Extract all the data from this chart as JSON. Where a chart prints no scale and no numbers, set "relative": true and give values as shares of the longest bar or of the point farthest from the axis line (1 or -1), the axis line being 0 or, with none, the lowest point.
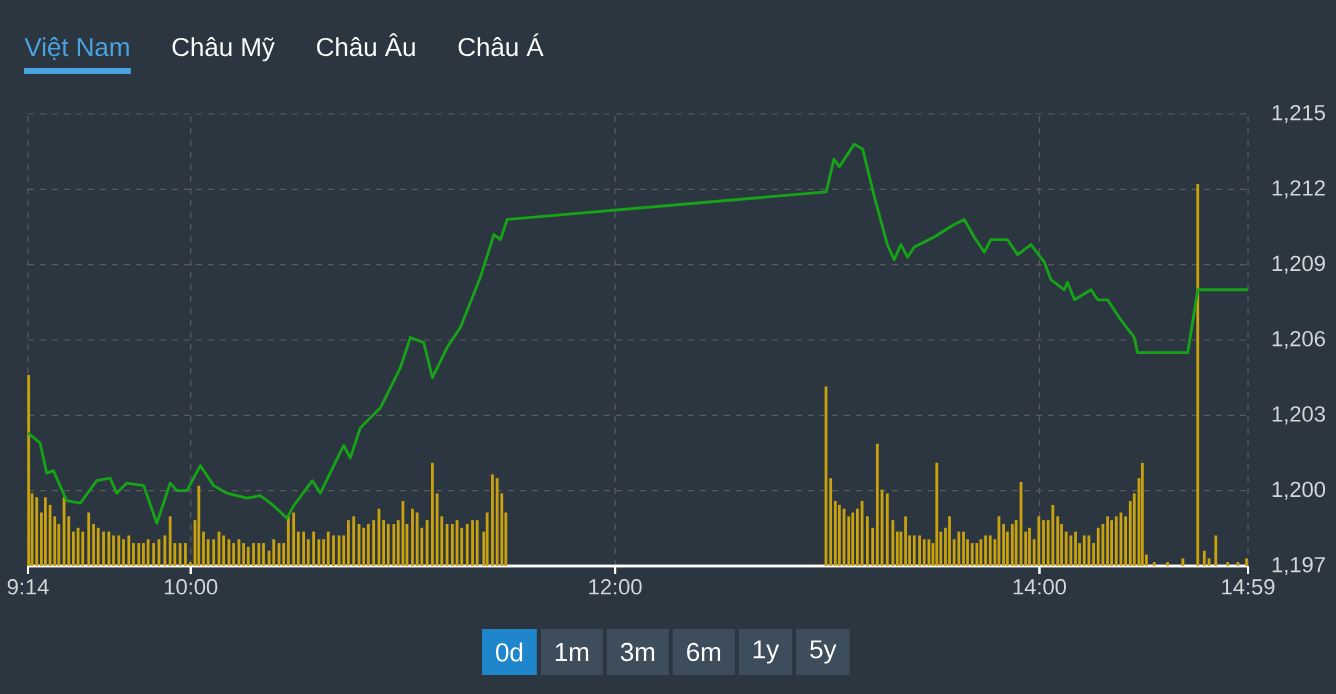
{
  "chart_data": [
    {
      "type": "line",
      "xlim": [
        9.233,
        14.983
      ],
      "ylim": [
        1197,
        1215
      ],
      "xticks": [
        {
          "value": 9.233,
          "label": null
        },
        {
          "value": 10,
          "label": null
        },
        {
          "value": 12,
          "label": null
        },
        {
          "value": 14,
          "label": null
        },
        {
          "value": 14.983,
          "label": null
        }
      ],
      "yticks": [
        {
          "value": 1197,
          "label": "1,197"
        },
        {
          "value": 1200,
          "label": "1,200"
        },
        {
          "value": 1203,
          "label": "1,203"
        },
        {
          "value": 1206,
          "label": "1,206"
        },
        {
          "value": 1209,
          "label": "1,209"
        },
        {
          "value": 1212,
          "label": "1,212"
        },
        {
          "value": 1215,
          "label": "1,215"
        }
      ],
      "grid": true,
      "tick_labels": "y",
      "annotations": [
        "Việt Nam",
        "Châu Mỹ",
        "Châu Âu",
        "Châu Á",
        "0d",
        "1m",
        "3m",
        "6m",
        "1y",
        "5y"
      ],
      "color": "#17a317",
      "x": [
        9.233,
        9.29,
        9.321,
        9.353,
        9.415,
        9.479,
        9.557,
        9.62,
        9.651,
        9.698,
        9.778,
        9.84,
        9.903,
        9.935,
        9.982,
        10.045,
        10.108,
        10.17,
        10.265,
        10.328,
        10.391,
        10.453,
        10.485,
        10.573,
        10.611,
        10.674,
        10.721,
        10.752,
        10.799,
        10.894,
        10.988,
        11.035,
        11.098,
        11.139,
        11.208,
        11.271,
        11.365,
        11.429,
        11.46,
        11.491,
        12.995,
        13.031,
        13.057,
        13.127,
        13.167,
        13.219,
        13.283,
        13.315,
        13.347,
        13.378,
        13.41,
        13.504,
        13.598,
        13.646,
        13.692,
        13.74,
        13.771,
        13.849,
        13.897,
        13.96,
        14.023,
        14.054,
        14.117,
        14.132,
        14.165,
        14.243,
        14.275,
        14.321,
        14.384,
        14.447,
        14.462,
        14.699,
        14.746,
        14.982
      ],
      "values": [
        1202.3,
        1201.9,
        1200.7,
        1200.8,
        1199.6,
        1199.5,
        1200.4,
        1200.5,
        1199.9,
        1200.3,
        1200.2,
        1198.7,
        1200.3,
        1200.0,
        1200.0,
        1201.0,
        1200.2,
        1199.9,
        1199.7,
        1199.8,
        1199.4,
        1198.9,
        1199.4,
        1200.4,
        1199.9,
        1201.0,
        1201.8,
        1201.3,
        1202.5,
        1203.3,
        1204.9,
        1206.1,
        1205.9,
        1204.5,
        1205.7,
        1206.5,
        1208.5,
        1210.2,
        1210.0,
        1210.8,
        1211.9,
        1213.2,
        1212.9,
        1213.8,
        1213.6,
        1211.8,
        1209.8,
        1209.2,
        1209.8,
        1209.3,
        1209.7,
        1210.1,
        1210.6,
        1210.8,
        1210.1,
        1209.5,
        1210.0,
        1210.0,
        1209.4,
        1209.8,
        1209.1,
        1208.4,
        1208.0,
        1208.3,
        1207.6,
        1208.0,
        1207.6,
        1207.6,
        1206.8,
        1206.1,
        1205.5,
        1205.5,
        1208.0,
        1208.0
      ]
    },
    {
      "type": "bar",
      "relative": true,
      "xlim": [
        9.233,
        14.983
      ],
      "tick_labels": "x",
      "color": "#c9a20e",
      "xticks": [
        {
          "value": 9.233,
          "label": "9:14"
        },
        {
          "value": 10,
          "label": "10:00"
        },
        {
          "value": 12,
          "label": "12:00"
        },
        {
          "value": 14,
          "label": "14:00"
        },
        {
          "value": 14.983,
          "label": "14:59"
        }
      ],
      "x": [
        9.236,
        9.252,
        9.274,
        9.296,
        9.315,
        9.337,
        9.359,
        9.378,
        9.403,
        9.425,
        9.447,
        9.469,
        9.491,
        9.519,
        9.542,
        9.564,
        9.589,
        9.614,
        9.636,
        9.661,
        9.683,
        9.708,
        9.73,
        9.755,
        9.777,
        9.799,
        9.825,
        9.85,
        9.878,
        9.903,
        9.925,
        9.95,
        9.975,
        9.998,
        10.02,
        10.038,
        10.06,
        10.082,
        10.108,
        10.133,
        10.155,
        10.18,
        10.202,
        10.227,
        10.249,
        10.271,
        10.296,
        10.321,
        10.343,
        10.369,
        10.391,
        10.416,
        10.438,
        10.46,
        10.485,
        10.507,
        10.532,
        10.554,
        10.579,
        10.604,
        10.626,
        10.648,
        10.673,
        10.699,
        10.721,
        10.743,
        10.768,
        10.793,
        10.815,
        10.837,
        10.862,
        10.887,
        10.909,
        10.931,
        10.957,
        10.978,
        11.0,
        11.019,
        11.045,
        11.067,
        11.089,
        11.114,
        11.139,
        11.161,
        11.183,
        11.208,
        11.233,
        11.255,
        11.277,
        11.303,
        11.328,
        11.35,
        11.381,
        11.397,
        11.422,
        11.444,
        11.466,
        11.485,
        12.994,
        13.016,
        13.038,
        13.057,
        13.079,
        13.101,
        13.12,
        13.142,
        13.164,
        13.189,
        13.214,
        13.236,
        13.258,
        13.283,
        13.309,
        13.33,
        13.347,
        13.369,
        13.388,
        13.41,
        13.435,
        13.457,
        13.479,
        13.498,
        13.516,
        13.535,
        13.557,
        13.576,
        13.598,
        13.62,
        13.642,
        13.661,
        13.683,
        13.705,
        13.724,
        13.746,
        13.768,
        13.79,
        13.809,
        13.831,
        13.849,
        13.872,
        13.89,
        13.913,
        13.935,
        13.953,
        13.975,
        13.997,
        14.019,
        14.041,
        14.063,
        14.086,
        14.104,
        14.126,
        14.148,
        14.17,
        14.189,
        14.211,
        14.233,
        14.255,
        14.277,
        14.299,
        14.321,
        14.34,
        14.362,
        14.384,
        14.406,
        14.428,
        14.447,
        14.469,
        14.485,
        14.504,
        14.541,
        14.604,
        14.676,
        14.746,
        14.777,
        14.799,
        14.831,
        14.887,
        14.935,
        14.976
      ],
      "values": [
        0.5,
        0.19,
        0.18,
        0.14,
        0.18,
        0.16,
        0.13,
        0.11,
        0.18,
        0.13,
        0.09,
        0.1,
        0.09,
        0.14,
        0.11,
        0.1,
        0.09,
        0.09,
        0.08,
        0.08,
        0.07,
        0.08,
        0.06,
        0.06,
        0.06,
        0.07,
        0.06,
        0.07,
        0.08,
        0.13,
        0.06,
        0.06,
        0.06,
        0.01,
        0.12,
        0.21,
        0.09,
        0.07,
        0.07,
        0.09,
        0.08,
        0.07,
        0.06,
        0.07,
        0.06,
        0.05,
        0.06,
        0.06,
        0.06,
        0.04,
        0.07,
        0.06,
        0.06,
        0.13,
        0.14,
        0.09,
        0.09,
        0.07,
        0.09,
        0.07,
        0.07,
        0.09,
        0.08,
        0.08,
        0.08,
        0.12,
        0.13,
        0.11,
        0.1,
        0.11,
        0.12,
        0.15,
        0.12,
        0.11,
        0.11,
        0.12,
        0.17,
        0.11,
        0.15,
        0.14,
        0.1,
        0.12,
        0.27,
        0.19,
        0.13,
        0.11,
        0.11,
        0.12,
        0.1,
        0.11,
        0.12,
        0.12,
        0.09,
        0.14,
        0.24,
        0.23,
        0.19,
        0.14,
        0.47,
        0.23,
        0.17,
        0.16,
        0.15,
        0.13,
        0.14,
        0.15,
        0.17,
        0.13,
        0.1,
        0.32,
        0.2,
        0.19,
        0.12,
        0.09,
        0.09,
        0.13,
        0.08,
        0.08,
        0.08,
        0.07,
        0.07,
        0.06,
        0.27,
        0.09,
        0.1,
        0.13,
        0.07,
        0.09,
        0.09,
        0.07,
        0.06,
        0.06,
        0.07,
        0.08,
        0.08,
        0.07,
        0.13,
        0.11,
        0.09,
        0.11,
        0.12,
        0.22,
        0.09,
        0.1,
        0.07,
        0.13,
        0.12,
        0.12,
        0.16,
        0.13,
        0.11,
        0.09,
        0.08,
        0.09,
        0.06,
        0.08,
        0.08,
        0.06,
        0.1,
        0.11,
        0.13,
        0.12,
        0.13,
        0.14,
        0.13,
        0.17,
        0.19,
        0.23,
        0.27,
        0.03,
        0.01,
        0.01,
        0.02,
        1.0,
        0.04,
        0.02,
        0.08,
        0.01,
        0.01,
        0.02
      ]
    }
  ]
}
